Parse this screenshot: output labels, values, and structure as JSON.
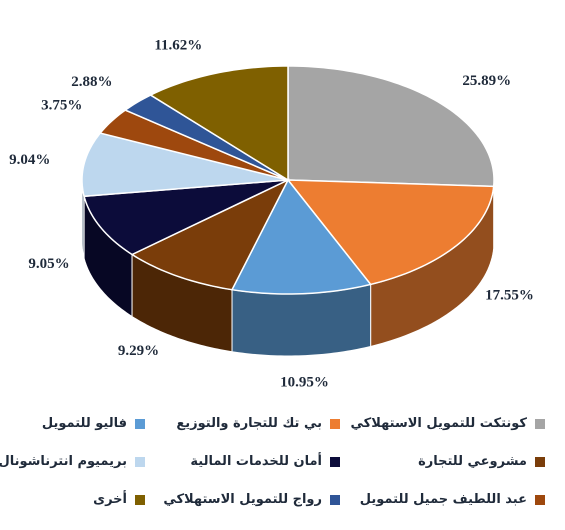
{
  "chart_data": {
    "type": "pie",
    "three_d": true,
    "series": [
      {
        "name": "كونتكت للتمويل الاستهلاكي",
        "value": 25.89,
        "label": "25.89%",
        "color": "#a5a5a5"
      },
      {
        "name": "بي تك للتجارة والتوزيع",
        "value": 17.55,
        "label": "17.55%",
        "color": "#ed7d31"
      },
      {
        "name": "فاليو للتمويل",
        "value": 10.95,
        "label": "10.95%",
        "color": "#5b9bd5"
      },
      {
        "name": "مشروعي للتجارة",
        "value": 9.29,
        "label": "9.29%",
        "color": "#7a3d0a"
      },
      {
        "name": "أمان للخدمات المالية",
        "value": 9.05,
        "label": "9.05%",
        "color": "#0c0c3a"
      },
      {
        "name": "بريميوم انترناشونال",
        "value": 9.04,
        "label": "9.04%",
        "color": "#bdd7ee"
      },
      {
        "name": "عبد اللطيف جميل للتمويل",
        "value": 3.75,
        "label": "3.75%",
        "color": "#9e480e"
      },
      {
        "name": "رواج للتمويل الاستهلاكي",
        "value": 2.88,
        "label": "2.88%",
        "color": "#2f5597"
      },
      {
        "name": "أخرى",
        "value": 11.62,
        "label": "11.62%",
        "color": "#7f6000"
      }
    ],
    "legend_position": "bottom",
    "legend": [
      [
        "كونتكت للتمويل الاستهلاكي",
        "بي تك للتجارة والتوزيع",
        "فاليو للتمويل"
      ],
      [
        "مشروعي للتجارة",
        "أمان للخدمات المالية",
        "بريميوم انترناشونال"
      ],
      [
        "عبد اللطيف جميل للتمويل",
        "رواج للتمويل الاستهلاكي",
        "أخرى"
      ]
    ]
  }
}
